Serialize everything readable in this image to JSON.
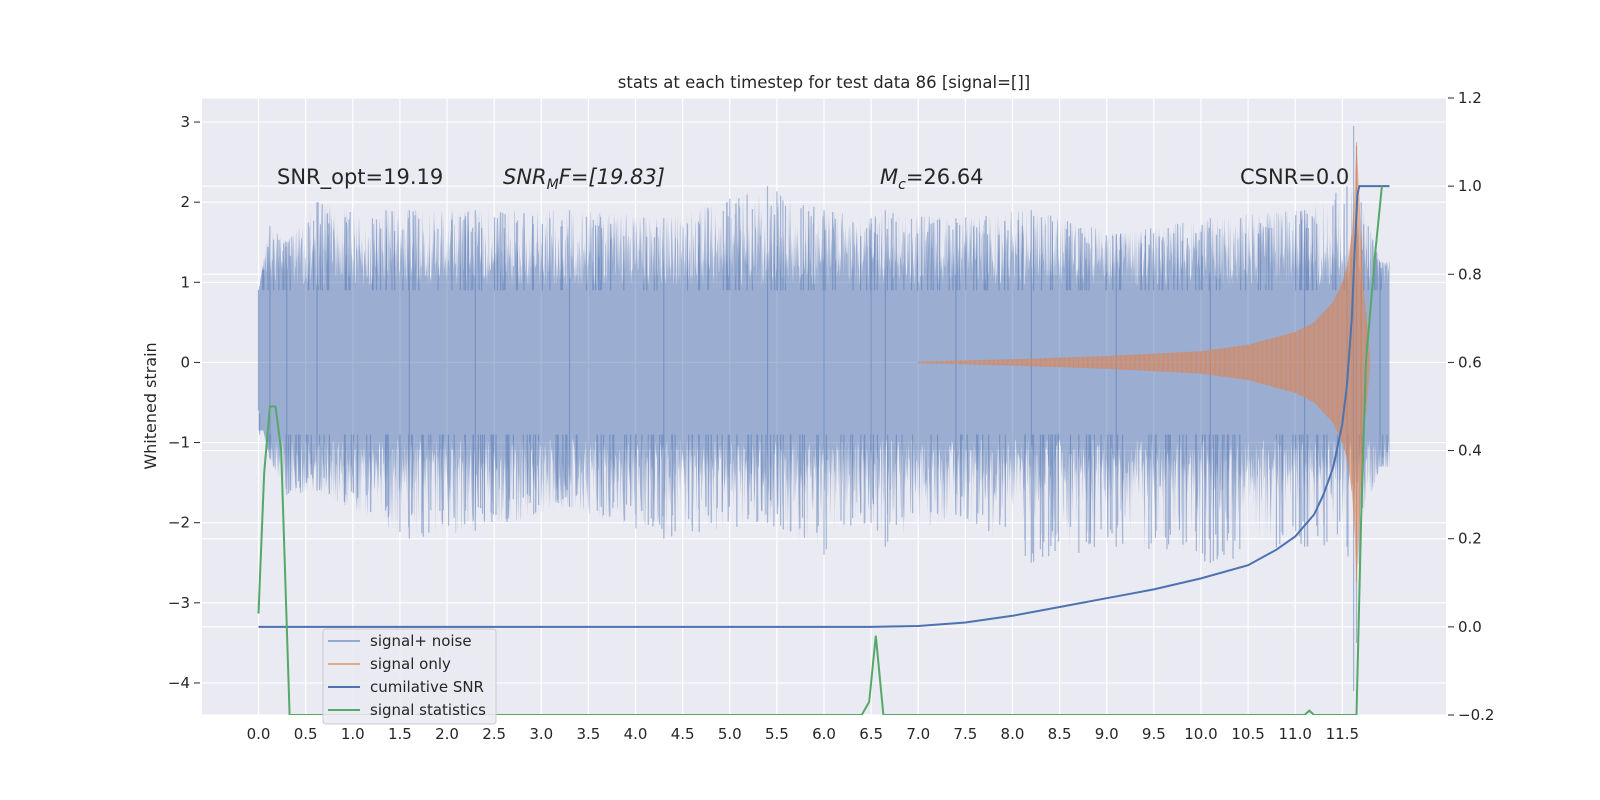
{
  "chart_data": {
    "type": "line",
    "title": "stats at each timestep for test data 86 [signal=[]]",
    "ylabel": "Whitened strain",
    "xlim": [
      -0.6,
      12.6
    ],
    "ylim_left": [
      -4.4,
      3.3
    ],
    "ylim_right": [
      -0.2,
      1.2
    ],
    "grid": true,
    "x_ticks": [
      0.0,
      0.5,
      1.0,
      1.5,
      2.0,
      2.5,
      3.0,
      3.5,
      4.0,
      4.5,
      5.0,
      5.5,
      6.0,
      6.5,
      7.0,
      7.5,
      8.0,
      8.5,
      9.0,
      9.5,
      10.0,
      10.5,
      11.0,
      11.5
    ],
    "x_tick_labels": [
      "0.0",
      "0.5",
      "1.0",
      "1.5",
      "2.0",
      "2.5",
      "3.0",
      "3.5",
      "4.0",
      "4.5",
      "5.0",
      "5.5",
      "6.0",
      "6.5",
      "7.0",
      "7.5",
      "8.0",
      "8.5",
      "9.0",
      "9.5",
      "10.0",
      "10.5",
      "11.0",
      "11.5"
    ],
    "y_left_ticks": [
      3,
      2,
      1,
      0,
      -1,
      -2,
      -3,
      -4
    ],
    "y_left_tick_labels": [
      "3",
      "2",
      "1",
      "0",
      "−1",
      "−2",
      "−3",
      "−4"
    ],
    "y_right_ticks": [
      1.2,
      1.0,
      0.8,
      0.6,
      0.4,
      0.2,
      0.0,
      -0.2
    ],
    "y_right_tick_labels": [
      "1.2",
      "1.0",
      "0.8",
      "0.6",
      "0.4",
      "0.2",
      "0.0",
      "−0.2"
    ],
    "annotations": {
      "snr_opt": "SNR_opt=19.19",
      "snr_mf_main": "SNR",
      "snr_mf_sub": "M",
      "snr_mf_rest": "F=[19.83]",
      "mc_main": "M",
      "mc_sub": "c",
      "mc_rest": "=26.64",
      "csnr": "CSNR=0.0"
    },
    "legend": {
      "location": "lower left",
      "entries": [
        "signal+ noise",
        "signal only",
        "cumilative SNR",
        "signal statistics"
      ]
    },
    "series": [
      {
        "name": "signal+ noise",
        "axis": "left",
        "color": "#4c72b0",
        "opacity": 0.5,
        "x_range": [
          0.0,
          12.0
        ],
        "noise_sigma": 0.55,
        "x": [
          0.0,
          0.12,
          0.3,
          0.62,
          1.6,
          2.3,
          3.3,
          4.3,
          5.4,
          6.0,
          6.5,
          6.65,
          7.4,
          8.2,
          9.1,
          10.1,
          11.1,
          11.55,
          11.62,
          11.65,
          11.7,
          11.9
        ],
        "upper": [
          0.9,
          1.7,
          1.5,
          2.0,
          1.9,
          1.9,
          1.9,
          1.8,
          2.2,
          1.9,
          1.8,
          1.9,
          1.8,
          1.9,
          1.6,
          1.8,
          1.9,
          2.2,
          2.95,
          2.7,
          2.0,
          1.25
        ],
        "lower": [
          -0.6,
          -1.2,
          -1.65,
          -1.6,
          -2.2,
          -2.1,
          -1.8,
          -2.2,
          -2.0,
          -2.4,
          -2.0,
          -2.3,
          -1.9,
          -2.5,
          -2.3,
          -2.5,
          -2.3,
          -2.3,
          -4.1,
          -3.5,
          -2.0,
          -1.3
        ]
      },
      {
        "name": "signal only",
        "axis": "left",
        "color": "#dd8452",
        "opacity": 0.65,
        "x": [
          7.0,
          8.0,
          9.0,
          10.0,
          10.5,
          11.0,
          11.2,
          11.4,
          11.5,
          11.55,
          11.6,
          11.63,
          11.65,
          11.68,
          11.72,
          11.8
        ],
        "envelope": [
          0.01,
          0.04,
          0.08,
          0.14,
          0.22,
          0.38,
          0.5,
          0.75,
          1.0,
          1.2,
          1.6,
          2.1,
          2.75,
          2.1,
          1.0,
          0.0
        ]
      },
      {
        "name": "cumilative SNR",
        "axis": "right",
        "color": "#4c72b0",
        "x": [
          0.0,
          6.0,
          6.5,
          7.0,
          7.5,
          8.0,
          8.5,
          9.0,
          9.5,
          10.0,
          10.5,
          10.8,
          11.0,
          11.2,
          11.3,
          11.4,
          11.5,
          11.55,
          11.6,
          11.63,
          11.66,
          11.68,
          11.7,
          12.0
        ],
        "values": [
          0.0,
          0.0,
          0.0,
          0.002,
          0.01,
          0.025,
          0.045,
          0.065,
          0.085,
          0.11,
          0.14,
          0.175,
          0.205,
          0.255,
          0.3,
          0.36,
          0.46,
          0.55,
          0.7,
          0.85,
          0.98,
          1.0,
          1.0,
          1.0
        ]
      },
      {
        "name": "signal statistics",
        "axis": "right",
        "color": "#55a868",
        "x": [
          0.0,
          0.06,
          0.12,
          0.18,
          0.24,
          0.3,
          0.33,
          6.4,
          6.48,
          6.55,
          6.63,
          11.1,
          11.15,
          11.2,
          11.65,
          11.7,
          11.75,
          11.85,
          11.92
        ],
        "values": [
          0.03,
          0.35,
          0.5,
          0.5,
          0.4,
          0.0,
          -0.2,
          -0.2,
          -0.17,
          -0.02,
          -0.2,
          -0.2,
          -0.19,
          -0.2,
          -0.2,
          0.25,
          0.6,
          0.85,
          1.0
        ]
      }
    ]
  }
}
